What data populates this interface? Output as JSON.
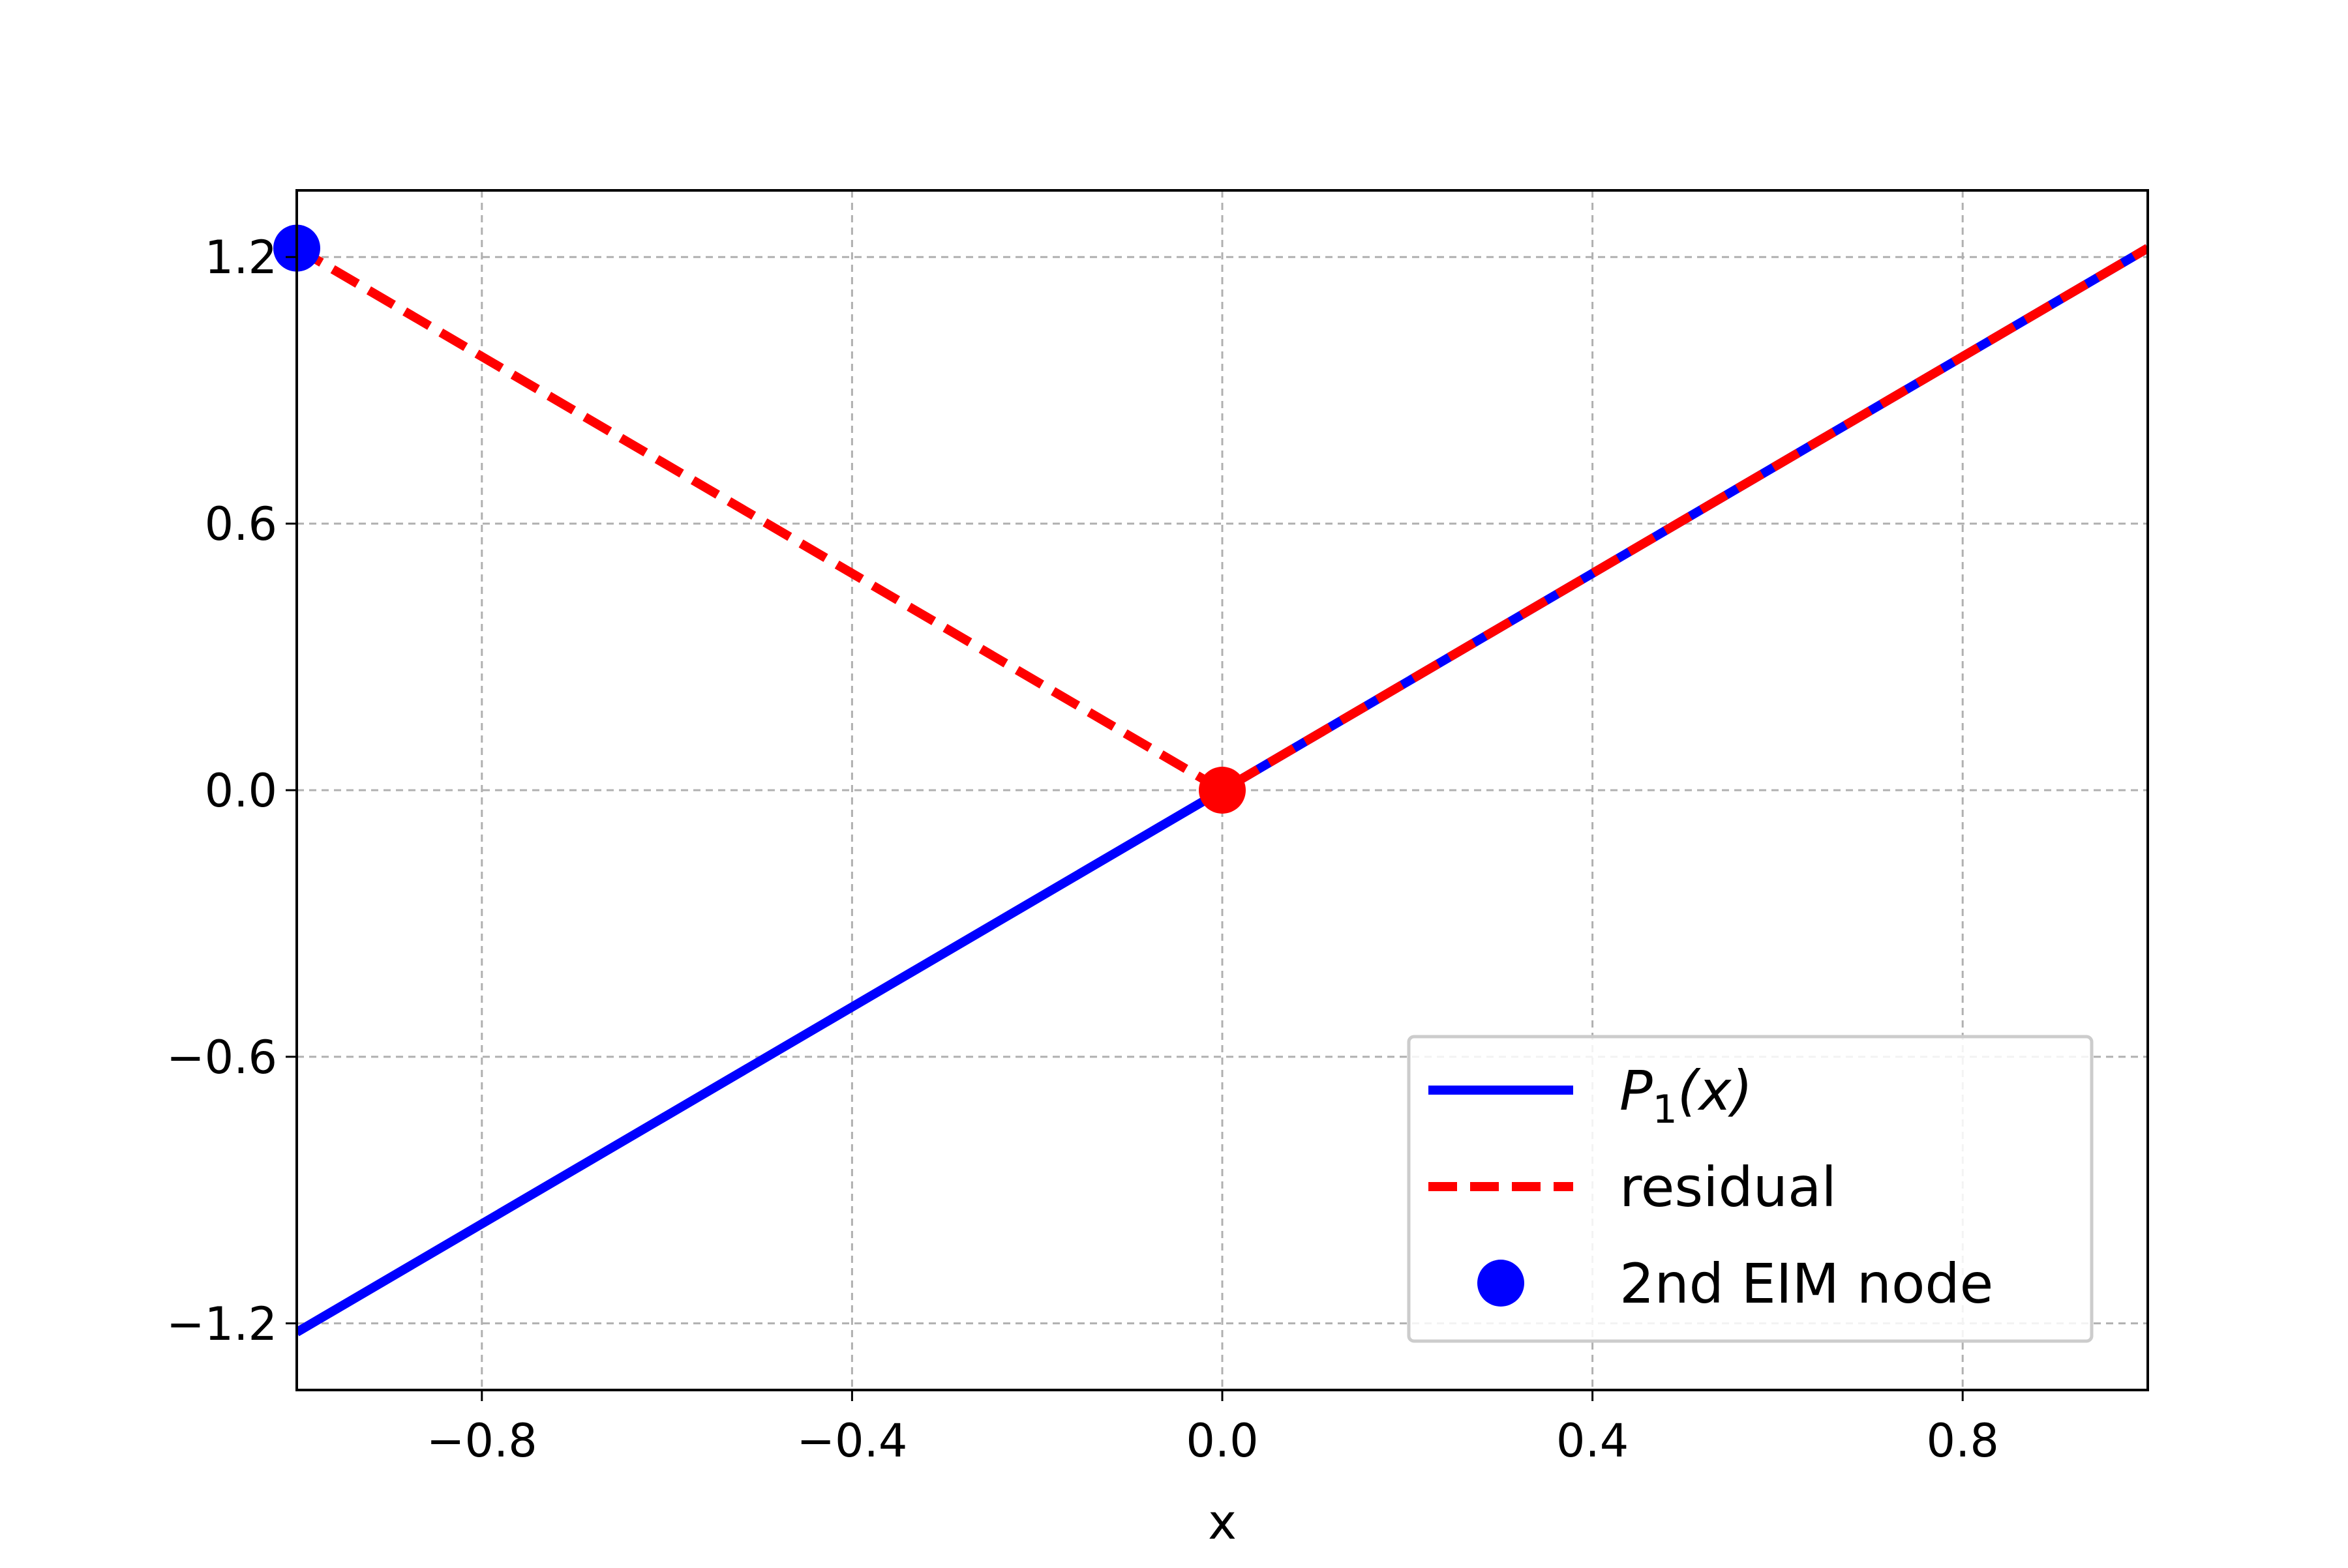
{
  "chart_data": {
    "type": "line",
    "title": "",
    "xlabel": "x",
    "ylabel": "",
    "xlim": [
      -1.0,
      1.0
    ],
    "ylim": [
      -1.35,
      1.35
    ],
    "x_ticks": [
      -0.8,
      -0.4,
      0.0,
      0.4,
      0.8
    ],
    "x_tick_labels": [
      "−0.8",
      "−0.4",
      "0.0",
      "0.4",
      "0.8"
    ],
    "y_ticks": [
      -1.2,
      -0.6,
      0.0,
      0.6,
      1.2
    ],
    "y_tick_labels": [
      "−1.2",
      "−0.6",
      "0.0",
      "0.6",
      "1.2"
    ],
    "grid": true,
    "legend_position": "lower-right",
    "series": [
      {
        "name": "P1(x)",
        "style": "solid",
        "color": "#0000ff",
        "x": [
          -1.0,
          1.0
        ],
        "y": [
          -1.22,
          1.22
        ]
      },
      {
        "name": "residual",
        "style": "dashed",
        "color": "#ff0000",
        "x": [
          -1.0,
          0.0,
          1.0
        ],
        "y": [
          1.22,
          0.0,
          1.22
        ]
      }
    ],
    "markers": [
      {
        "name": "2nd EIM node",
        "in_legend": true,
        "color": "#0000ff",
        "x": -1.0,
        "y": 1.22
      },
      {
        "name": "",
        "in_legend": false,
        "color": "#ff0000",
        "x": 0.0,
        "y": 0.0
      }
    ],
    "legend": [
      {
        "symbol": "line",
        "name_main": "P",
        "name_sub": "1",
        "name_tail": "(x)",
        "color": "#0000ff"
      },
      {
        "symbol": "dashed",
        "label": "residual",
        "color": "#ff0000"
      },
      {
        "symbol": "dot",
        "label": "2nd EIM node",
        "color": "#0000ff"
      }
    ]
  }
}
